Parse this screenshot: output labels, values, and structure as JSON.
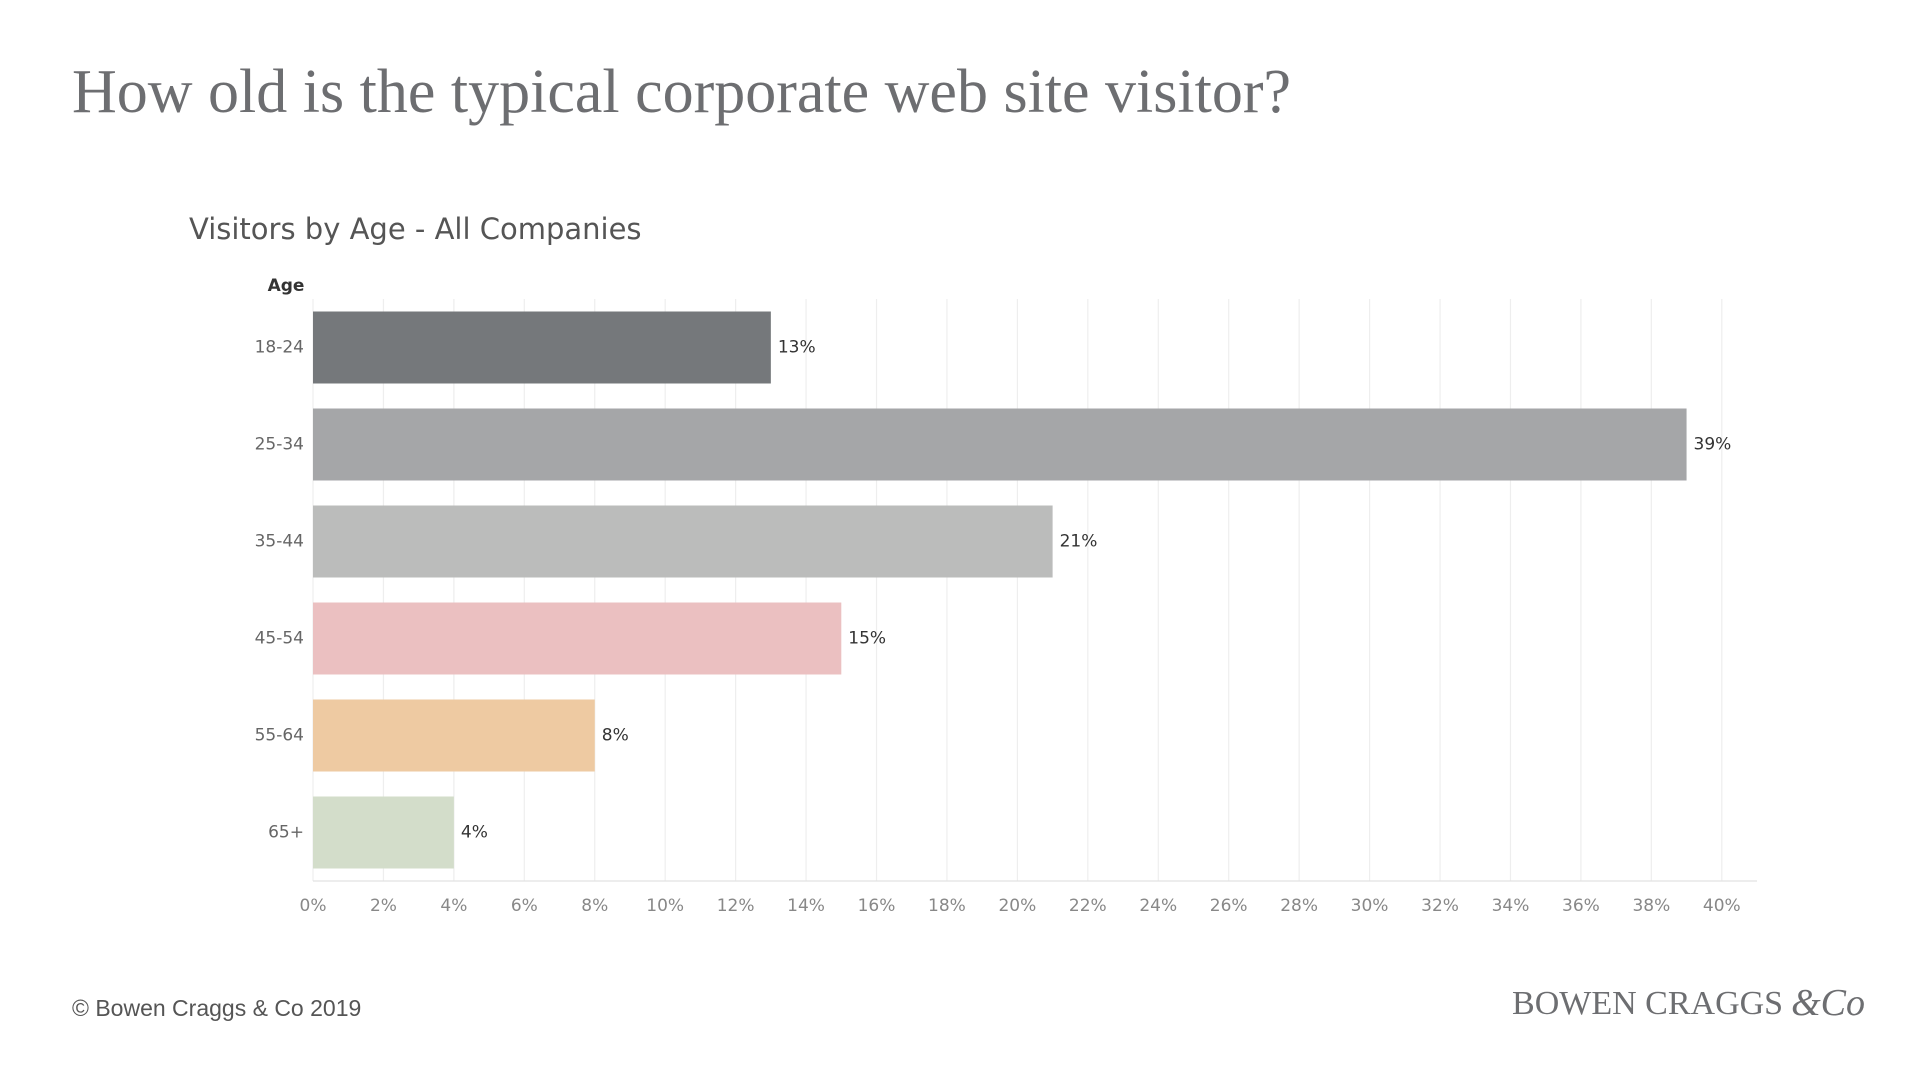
{
  "title": "How old is the typical corporate web site visitor?",
  "footer": "© Bowen Craggs & Co 2019",
  "logo_name": "BOWEN CRAGGS",
  "logo_amp": "&Co",
  "chart_data": {
    "type": "bar",
    "title": "Visitors by Age - All Companies",
    "y_label": "Age",
    "categories": [
      "18-24",
      "25-34",
      "35-44",
      "45-54",
      "55-64",
      "65+"
    ],
    "values": [
      13,
      39,
      21,
      15,
      8,
      4
    ],
    "value_labels": [
      "13%",
      "39%",
      "21%",
      "15%",
      "8%",
      "4%"
    ],
    "colors": [
      "#75787b",
      "#a5a6a8",
      "#bbbcbb",
      "#ebc0c1",
      "#eecaa2",
      "#d3ddca"
    ],
    "xlim": [
      0,
      41
    ],
    "xticks": [
      {
        "value": 0,
        "label": "0%"
      },
      {
        "value": 2,
        "label": "2%"
      },
      {
        "value": 4,
        "label": "4%"
      },
      {
        "value": 6,
        "label": "6%"
      },
      {
        "value": 8,
        "label": "8%"
      },
      {
        "value": 10,
        "label": "10%"
      },
      {
        "value": 12,
        "label": "12%"
      },
      {
        "value": 14,
        "label": "14%"
      },
      {
        "value": 16,
        "label": "16%"
      },
      {
        "value": 18,
        "label": "18%"
      },
      {
        "value": 20,
        "label": "20%"
      },
      {
        "value": 22,
        "label": "22%"
      },
      {
        "value": 24,
        "label": "24%"
      },
      {
        "value": 26,
        "label": "26%"
      },
      {
        "value": 28,
        "label": "28%"
      },
      {
        "value": 30,
        "label": "30%"
      },
      {
        "value": 32,
        "label": "32%"
      },
      {
        "value": 34,
        "label": "34%"
      },
      {
        "value": 36,
        "label": "36%"
      },
      {
        "value": 38,
        "label": "38%"
      },
      {
        "value": 40,
        "label": "40%"
      }
    ],
    "grid": true
  }
}
